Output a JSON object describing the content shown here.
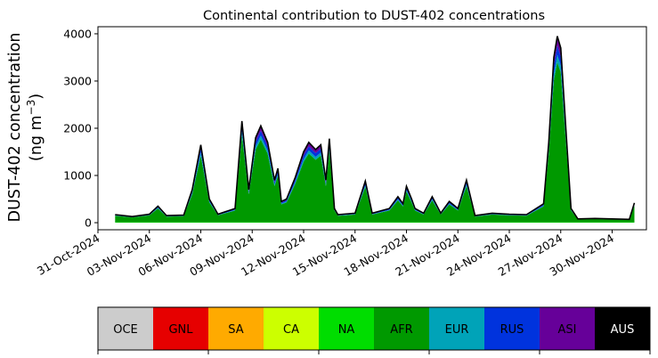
{
  "chart_data": {
    "type": "area",
    "stacked": true,
    "title": "Continental contribution to DUST-402 concentrations",
    "ylabel_line1": "DUST-402 concentration",
    "ylabel_line2": "(ng m",
    "ylabel_sup": "−3",
    "ylabel_close": ")",
    "xlim": [
      "2024-10-31",
      "2024-12-02"
    ],
    "ylim": [
      -150,
      4150
    ],
    "y_ticks": [
      "0",
      "1000",
      "2000",
      "3000",
      "4000"
    ],
    "x_ticks": [
      "31-Oct-2024",
      "03-Nov-2024",
      "06-Nov-2024",
      "09-Nov-2024",
      "12-Nov-2024",
      "15-Nov-2024",
      "18-Nov-2024",
      "21-Nov-2024",
      "24-Nov-2024",
      "27-Nov-2024",
      "30-Nov-2024"
    ],
    "total_points": [
      [
        "2024-11-01",
        170
      ],
      [
        "2024-11-02",
        130
      ],
      [
        "2024-11-03",
        180
      ],
      [
        "2024-11-03.5",
        350
      ],
      [
        "2024-11-04",
        150
      ],
      [
        "2024-11-05",
        160
      ],
      [
        "2024-11-05.5",
        700
      ],
      [
        "2024-11-06",
        1650
      ],
      [
        "2024-11-06.5",
        500
      ],
      [
        "2024-11-07",
        180
      ],
      [
        "2024-11-08",
        300
      ],
      [
        "2024-11-08.4",
        2150
      ],
      [
        "2024-11-08.8",
        700
      ],
      [
        "2024-11-09.2",
        1800
      ],
      [
        "2024-11-09.5",
        2050
      ],
      [
        "2024-11-09.9",
        1700
      ],
      [
        "2024-11-10.3",
        900
      ],
      [
        "2024-11-10.5",
        1150
      ],
      [
        "2024-11-10.7",
        450
      ],
      [
        "2024-11-11",
        500
      ],
      [
        "2024-11-11.5",
        950
      ],
      [
        "2024-11-12",
        1500
      ],
      [
        "2024-11-12.3",
        1700
      ],
      [
        "2024-11-12.7",
        1550
      ],
      [
        "2024-11-13",
        1650
      ],
      [
        "2024-11-13.3",
        900
      ],
      [
        "2024-11-13.5",
        1780
      ],
      [
        "2024-11-13.8",
        300
      ],
      [
        "2024-11-14",
        170
      ],
      [
        "2024-11-15",
        200
      ],
      [
        "2024-11-15.6",
        880
      ],
      [
        "2024-11-16",
        200
      ],
      [
        "2024-11-17",
        300
      ],
      [
        "2024-11-17.5",
        550
      ],
      [
        "2024-11-17.8",
        400
      ],
      [
        "2024-11-18",
        770
      ],
      [
        "2024-11-18.3",
        500
      ],
      [
        "2024-11-18.5",
        300
      ],
      [
        "2024-11-19",
        200
      ],
      [
        "2024-11-19.5",
        550
      ],
      [
        "2024-11-20",
        200
      ],
      [
        "2024-11-20.5",
        450
      ],
      [
        "2024-11-21",
        300
      ],
      [
        "2024-11-21.5",
        900
      ],
      [
        "2024-11-22",
        150
      ],
      [
        "2024-11-23",
        200
      ],
      [
        "2024-11-24",
        180
      ],
      [
        "2024-11-25",
        170
      ],
      [
        "2024-11-26",
        400
      ],
      [
        "2024-11-26.3",
        1700
      ],
      [
        "2024-11-26.6",
        3500
      ],
      [
        "2024-11-26.8",
        3950
      ],
      [
        "2024-11-27",
        3700
      ],
      [
        "2024-11-27.3",
        2000
      ],
      [
        "2024-11-27.6",
        300
      ],
      [
        "2024-11-28",
        80
      ],
      [
        "2024-11-29",
        90
      ],
      [
        "2024-11-30",
        80
      ],
      [
        "2024-12-01",
        70
      ],
      [
        "2024-12-01.3",
        420
      ]
    ],
    "series": [
      {
        "name": "OCE",
        "color": "#cccccc"
      },
      {
        "name": "GNL",
        "color": "#e60000"
      },
      {
        "name": "SA",
        "color": "#ffaa00"
      },
      {
        "name": "CA",
        "color": "#ccff00"
      },
      {
        "name": "NA",
        "color": "#00dd00"
      },
      {
        "name": "AFR",
        "color": "#009900"
      },
      {
        "name": "EUR",
        "color": "#00a3b8"
      },
      {
        "name": "RUS",
        "color": "#0033dd"
      },
      {
        "name": "ASI",
        "color": "#660099"
      },
      {
        "name": "AUS",
        "color": "#000000"
      }
    ],
    "total_line_color": "#000000",
    "grid": false
  },
  "legend": {
    "items": [
      "OCE",
      "GNL",
      "SA",
      "CA",
      "NA",
      "AFR",
      "EUR",
      "RUS",
      "ASI",
      "AUS"
    ],
    "text_colors": [
      "#000000",
      "#000000",
      "#000000",
      "#000000",
      "#000000",
      "#000000",
      "#000000",
      "#000000",
      "#000000",
      "#ffffff"
    ]
  }
}
